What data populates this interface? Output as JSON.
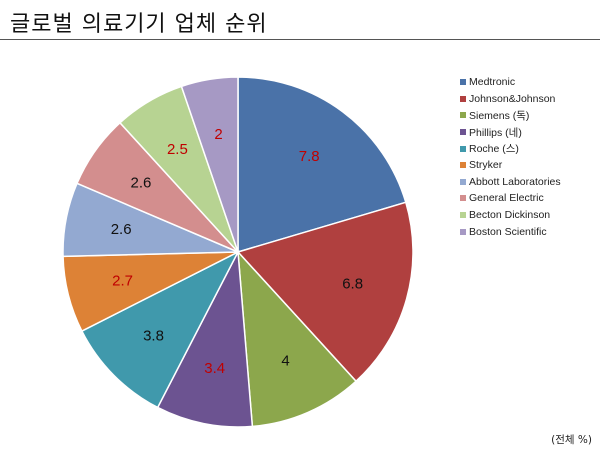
{
  "page": {
    "title": "글로벌 의료기기 업체 순위",
    "unit_note": "(전체 %)"
  },
  "chart_data": {
    "type": "pie",
    "categories": [
      "Medtronic",
      "Johnson&Johnson",
      "Siemens (독)",
      "Phillips (네)",
      "Roche (스)",
      "Stryker",
      "Abbott Laboratories",
      "General Electric",
      "Becton Dickinson",
      "Boston Scientific"
    ],
    "values": [
      7.8,
      6.8,
      4,
      3.4,
      3.8,
      2.7,
      2.6,
      2.6,
      2.5,
      2
    ],
    "data_labels": [
      "7.8",
      "6.8",
      "4",
      "3.4",
      "3.8",
      "2.7",
      "2.6",
      "2.6",
      "2.5",
      "2"
    ],
    "colors": [
      "#4A72A8",
      "#B0403F",
      "#8CA74C",
      "#6C5391",
      "#4099AC",
      "#DD8236",
      "#93A9D1",
      "#D38E8E",
      "#B7D392",
      "#A699C4"
    ],
    "label_colors": [
      "#C00000",
      "#111111",
      "#111111",
      "#C00000",
      "#111111",
      "#C00000",
      "#111111",
      "#111111",
      "#C00000",
      "#C00000"
    ],
    "legend_position": "right",
    "start_angle": "12 o'clock",
    "direction": "clockwise"
  }
}
